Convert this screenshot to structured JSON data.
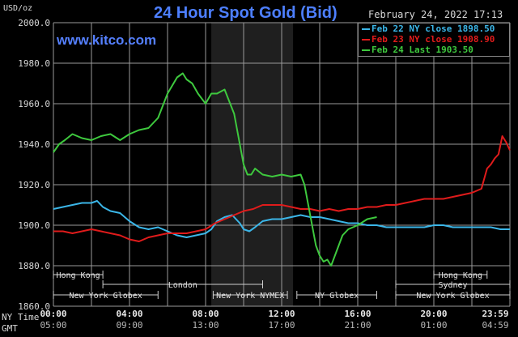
{
  "header": {
    "unit": "USD/oz",
    "title": "24 Hour Spot Gold (Bid)",
    "watermark": "www.kitco.com",
    "datestamp": "February 24, 2022 17:13"
  },
  "footer": {
    "ny_time_label": "NY Time",
    "gmt_label": "GMT",
    "ny_time_ticks": [
      "00:00",
      "04:00",
      "08:00",
      "12:00",
      "16:00",
      "20:00",
      "23:59"
    ],
    "gmt_ticks": [
      "05:00",
      "09:00",
      "13:00",
      "17:00",
      "21:00",
      "01:00",
      "04:59"
    ]
  },
  "colors": {
    "background": "#000000",
    "grid": "#9a9a9a",
    "shade": "#1f1f1f",
    "title": "#4d7fff",
    "feb22": "#3bb6e8",
    "feb23": "#e01b1b",
    "feb24": "#3ec93e",
    "session_bar": "#cfcfcf"
  },
  "sessions": [
    {
      "label": "Hong Kong",
      "row": 0,
      "start": 0.0,
      "end": 2.6
    },
    {
      "label": "Hong Kong",
      "row": 0,
      "start": 20.0,
      "end": 22.8
    },
    {
      "label": "Sydney",
      "row": 1,
      "start": 18.0,
      "end": 24.0
    },
    {
      "label": "London",
      "row": 1,
      "start": 2.6,
      "end": 11.0
    },
    {
      "label": "New York Globex",
      "row": 2,
      "start": 0.0,
      "end": 5.5
    },
    {
      "label": "New York NYMEX",
      "row": 2,
      "start": 8.4,
      "end": 12.3
    },
    {
      "label": "NY Globex",
      "row": 2,
      "start": 12.8,
      "end": 17.0
    },
    {
      "label": "New York Globex",
      "row": 2,
      "start": 18.0,
      "end": 24.0
    }
  ],
  "chart_data": {
    "type": "line",
    "title": "24 Hour Spot Gold (Bid)",
    "ylabel": "USD/oz",
    "xlim": [
      0,
      24
    ],
    "ylim": [
      1860,
      2000
    ],
    "yticks": [
      1860,
      1880,
      1900,
      1920,
      1940,
      1960,
      1980,
      2000
    ],
    "shaded_region": [
      8.3,
      12.6
    ],
    "grid": true,
    "legend_position": "top-right",
    "series": [
      {
        "name": "Feb 22 NY close 1898.50",
        "color": "#3bb6e8",
        "x": [
          0,
          0.5,
          1,
          1.5,
          2,
          2.3,
          2.6,
          3,
          3.5,
          4,
          4.5,
          5,
          5.5,
          6,
          6.5,
          7,
          7.5,
          8,
          8.3,
          8.6,
          9,
          9.4,
          9.8,
          10,
          10.3,
          10.6,
          11,
          11.5,
          12,
          12.5,
          13,
          13.5,
          14,
          14.5,
          15,
          15.5,
          16,
          16.5,
          17,
          17.5,
          18,
          18.5,
          19,
          19.5,
          20,
          20.5,
          21,
          21.5,
          22,
          22.5,
          23,
          23.5,
          24
        ],
        "values": [
          1908,
          1909,
          1910,
          1911,
          1911,
          1912,
          1909,
          1907,
          1906,
          1902,
          1899,
          1898,
          1899,
          1897,
          1895,
          1894,
          1895,
          1896,
          1898,
          1902,
          1904,
          1905,
          1901,
          1898,
          1897,
          1899,
          1902,
          1903,
          1903,
          1904,
          1905,
          1904,
          1904,
          1903,
          1902,
          1901,
          1901,
          1900,
          1900,
          1899,
          1899,
          1899,
          1899,
          1899,
          1900,
          1900,
          1899,
          1899,
          1899,
          1899,
          1899,
          1898,
          1898
        ]
      },
      {
        "name": "Feb 23 NY close 1908.90",
        "color": "#e01b1b",
        "x": [
          0,
          0.5,
          1,
          1.5,
          2,
          2.5,
          3,
          3.5,
          4,
          4.5,
          5,
          5.5,
          6,
          6.5,
          7,
          7.5,
          8,
          8.5,
          9,
          9.5,
          10,
          10.5,
          11,
          11.5,
          12,
          12.5,
          13,
          13.5,
          14,
          14.5,
          15,
          15.5,
          16,
          16.5,
          17,
          17.5,
          18,
          18.5,
          19,
          19.5,
          20,
          20.5,
          21,
          21.5,
          22,
          22.5,
          22.8,
          23,
          23.2,
          23.4,
          23.6,
          23.8,
          24
        ],
        "values": [
          1897,
          1897,
          1896,
          1897,
          1898,
          1897,
          1896,
          1895,
          1893,
          1892,
          1894,
          1895,
          1896,
          1896,
          1896,
          1897,
          1898,
          1901,
          1903,
          1905,
          1907,
          1908,
          1910,
          1910,
          1910,
          1909,
          1908,
          1908,
          1907,
          1908,
          1907,
          1908,
          1908,
          1909,
          1909,
          1910,
          1910,
          1911,
          1912,
          1913,
          1913,
          1913,
          1914,
          1915,
          1916,
          1918,
          1928,
          1930,
          1933,
          1935,
          1944,
          1941,
          1937
        ]
      },
      {
        "name": "Feb 24 Last 1903.50",
        "color": "#3ec93e",
        "x": [
          0,
          0.3,
          0.6,
          1,
          1.5,
          2,
          2.5,
          3,
          3.5,
          4,
          4.5,
          5,
          5.5,
          6,
          6.5,
          6.8,
          7,
          7.3,
          7.6,
          8,
          8.3,
          8.6,
          9,
          9.5,
          9.8,
          10,
          10.2,
          10.4,
          10.6,
          11,
          11.5,
          12,
          12.5,
          13,
          13.2,
          13.4,
          13.6,
          13.8,
          14,
          14.2,
          14.4,
          14.6,
          14.8,
          15,
          15.2,
          15.5,
          16,
          16.5,
          17
        ],
        "values": [
          1936,
          1940,
          1942,
          1945,
          1943,
          1942,
          1944,
          1945,
          1942,
          1945,
          1947,
          1948,
          1953,
          1965,
          1973,
          1975,
          1972,
          1970,
          1965,
          1960,
          1965,
          1965,
          1967,
          1955,
          1940,
          1930,
          1925,
          1925,
          1928,
          1925,
          1924,
          1925,
          1924,
          1925,
          1920,
          1910,
          1900,
          1890,
          1885,
          1882,
          1883,
          1880,
          1885,
          1890,
          1895,
          1898,
          1900,
          1903,
          1904
        ]
      }
    ]
  }
}
